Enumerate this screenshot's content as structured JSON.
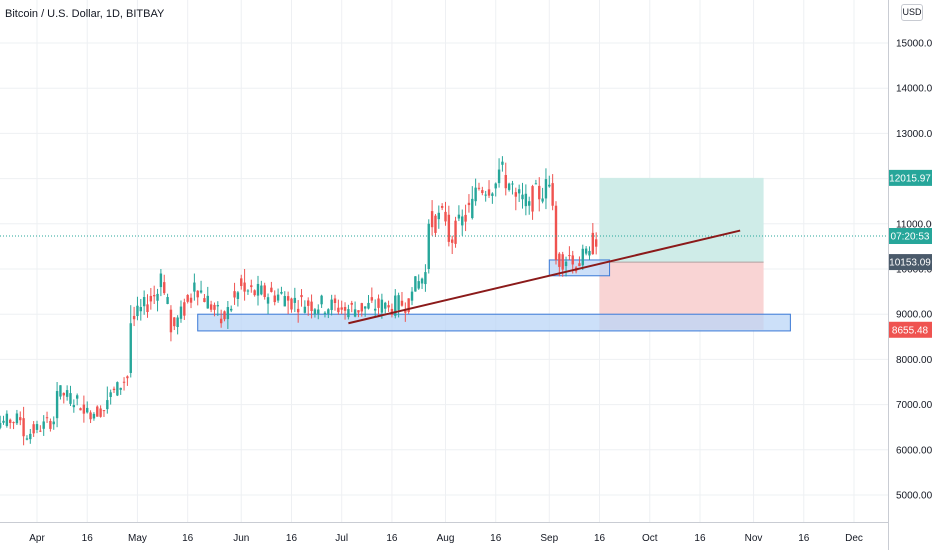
{
  "header": {
    "title": "Bitcoin / U.S. Dollar, 1D, BITBAY",
    "currency_label": "USD"
  },
  "colors": {
    "up": "#26a69a",
    "down": "#ef5350",
    "grid": "#eef0f3",
    "trendline": "#8b1a1a",
    "zone_fill": "#bbd6f7",
    "zone_stroke": "#3a79d6",
    "profit_fill": "#cfece8",
    "loss_fill": "#f9d4d4",
    "badge_green": "#26a69a",
    "badge_blue": "#4a5a6a",
    "badge_red": "#ef5350"
  },
  "price_badges": [
    {
      "label": "12015.97",
      "value": 12015.97,
      "color": "#26a69a"
    },
    {
      "label": "07:20:53",
      "value": 10730,
      "color": "#26a69a"
    },
    {
      "label": "10153.09",
      "value": 10153.09,
      "color": "#4a5a6a"
    },
    {
      "label": "8655.48",
      "value": 8655.48,
      "color": "#ef5350"
    }
  ],
  "chart_data": {
    "type": "candlestick",
    "title": "Bitcoin / U.S. Dollar, 1D, BITBAY",
    "xlabel": "",
    "ylabel": "",
    "grid": true,
    "ylim": [
      4500,
      15900
    ],
    "y_ticks": [
      {
        "value": 5000,
        "label": "5000.00"
      },
      {
        "value": 6000,
        "label": "6000.00"
      },
      {
        "value": 7000,
        "label": "7000.00"
      },
      {
        "value": 8000,
        "label": "8000.00"
      },
      {
        "value": 9000,
        "label": "9000.00"
      },
      {
        "value": 10000,
        "label": "10000.00"
      },
      {
        "value": 11000,
        "label": "11000.00"
      },
      {
        "value": 12000,
        "label": "12000.00"
      },
      {
        "value": 13000,
        "label": "13000.00"
      },
      {
        "value": 14000,
        "label": "14000.00"
      },
      {
        "value": 15000,
        "label": "15000.00"
      }
    ],
    "x_ticks": [
      {
        "date": "2020-04-01",
        "label": "Apr"
      },
      {
        "date": "2020-04-16",
        "label": "16"
      },
      {
        "date": "2020-05-01",
        "label": "May"
      },
      {
        "date": "2020-05-16",
        "label": "16"
      },
      {
        "date": "2020-06-01",
        "label": "Jun"
      },
      {
        "date": "2020-06-16",
        "label": "16"
      },
      {
        "date": "2020-07-01",
        "label": "Jul"
      },
      {
        "date": "2020-07-16",
        "label": "16"
      },
      {
        "date": "2020-08-01",
        "label": "Aug"
      },
      {
        "date": "2020-08-16",
        "label": "16"
      },
      {
        "date": "2020-09-01",
        "label": "Sep"
      },
      {
        "date": "2020-09-16",
        "label": "16"
      },
      {
        "date": "2020-10-01",
        "label": "Oct"
      },
      {
        "date": "2020-10-16",
        "label": "16"
      },
      {
        "date": "2020-11-01",
        "label": "Nov"
      },
      {
        "date": "2020-11-16",
        "label": "16"
      },
      {
        "date": "2020-12-01",
        "label": "Dec"
      }
    ],
    "series": [
      {
        "ohlc_keyframes": [
          {
            "date": "2020-03-13",
            "o": 5400,
            "c": 6200,
            "h": 8400,
            "l": 5100
          },
          {
            "date": "2020-03-20",
            "o": 6100,
            "c": 6600,
            "h": 6900,
            "l": 5800
          },
          {
            "date": "2020-03-28",
            "o": 6700,
            "c": 6300,
            "h": 6950,
            "l": 6100
          },
          {
            "date": "2020-04-07",
            "o": 6700,
            "c": 7300,
            "h": 7500,
            "l": 6500
          },
          {
            "date": "2020-04-15",
            "o": 7000,
            "c": 6800,
            "h": 7200,
            "l": 6600
          },
          {
            "date": "2020-04-22",
            "o": 6900,
            "c": 7100,
            "h": 7400,
            "l": 6800
          },
          {
            "date": "2020-04-29",
            "o": 7700,
            "c": 8800,
            "h": 9200,
            "l": 7600
          },
          {
            "date": "2020-05-08",
            "o": 9600,
            "c": 9900,
            "h": 10000,
            "l": 9400
          },
          {
            "date": "2020-05-11",
            "o": 9100,
            "c": 8600,
            "h": 9200,
            "l": 8400
          },
          {
            "date": "2020-05-18",
            "o": 9500,
            "c": 9700,
            "h": 9900,
            "l": 9300
          },
          {
            "date": "2020-05-26",
            "o": 8900,
            "c": 8800,
            "h": 9100,
            "l": 8700
          },
          {
            "date": "2020-06-02",
            "o": 9700,
            "c": 9500,
            "h": 10000,
            "l": 9300
          },
          {
            "date": "2020-06-15",
            "o": 9400,
            "c": 9300,
            "h": 9500,
            "l": 9000
          },
          {
            "date": "2020-07-01",
            "o": 9150,
            "c": 9100,
            "h": 9300,
            "l": 9000
          },
          {
            "date": "2020-07-15",
            "o": 9200,
            "c": 9150,
            "h": 9300,
            "l": 9050
          },
          {
            "date": "2020-07-22",
            "o": 9300,
            "c": 9500,
            "h": 9600,
            "l": 9200
          },
          {
            "date": "2020-07-27",
            "o": 10000,
            "c": 11000,
            "h": 11100,
            "l": 9900
          },
          {
            "date": "2020-08-02",
            "o": 11200,
            "c": 10600,
            "h": 11400,
            "l": 10500
          },
          {
            "date": "2020-08-10",
            "o": 11500,
            "c": 11800,
            "h": 12000,
            "l": 11400
          },
          {
            "date": "2020-08-17",
            "o": 11900,
            "c": 12200,
            "h": 12450,
            "l": 11800
          },
          {
            "date": "2020-08-22",
            "o": 11700,
            "c": 11600,
            "h": 11800,
            "l": 11300
          },
          {
            "date": "2020-08-26",
            "o": 11400,
            "c": 11500,
            "h": 11600,
            "l": 11200
          },
          {
            "date": "2020-09-02",
            "o": 11900,
            "c": 11400,
            "h": 12100,
            "l": 11300
          },
          {
            "date": "2020-09-03",
            "o": 11400,
            "c": 10200,
            "h": 11500,
            "l": 10100
          },
          {
            "date": "2020-09-08",
            "o": 10300,
            "c": 10100,
            "h": 10400,
            "l": 9900
          },
          {
            "date": "2020-09-13",
            "o": 10300,
            "c": 10400,
            "h": 10500,
            "l": 10200
          },
          {
            "date": "2020-09-15",
            "o": 10700,
            "c": 10750,
            "h": 10900,
            "l": 10600
          }
        ]
      }
    ],
    "drawings": {
      "trendline": {
        "from": {
          "date": "2020-07-03",
          "value": 8800
        },
        "to": {
          "date": "2020-10-28",
          "value": 10850
        }
      },
      "support_zone": {
        "from_date": "2020-05-19",
        "to_date": "2020-11-12",
        "top": 9000,
        "bottom": 8630
      },
      "small_zone": {
        "from_date": "2020-09-01",
        "to_date": "2020-09-19",
        "top": 10200,
        "bottom": 9850
      },
      "long_position": {
        "from_date": "2020-09-16",
        "to_date": "2020-11-04",
        "target": 12015.97,
        "entry": 10153.09,
        "stop": 8655.48
      },
      "current_price": 10730
    }
  }
}
